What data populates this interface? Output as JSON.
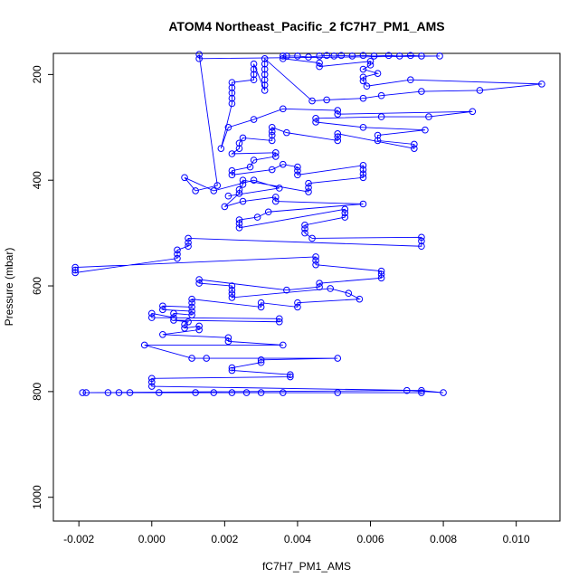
{
  "chart_data": {
    "type": "scatter",
    "title": "ATOM4 Northeast_Pacific_2 fC7H7_PM1_AMS",
    "xlabel": "fC7H7_PM1_AMS",
    "ylabel": "Pressure (mbar)",
    "xlim": [
      -0.0027,
      0.0112
    ],
    "ylim": [
      1045,
      160
    ],
    "y_reversed": true,
    "x_ticks": [
      -0.002,
      0.0,
      0.002,
      0.004,
      0.006,
      0.008,
      0.01
    ],
    "x_tick_labels": [
      "-0.002",
      "0.000",
      "0.002",
      "0.004",
      "0.006",
      "0.008",
      "0.010"
    ],
    "y_ticks": [
      200,
      400,
      600,
      800,
      1000
    ],
    "y_tick_labels": [
      "200",
      "400",
      "600",
      "800",
      "1000"
    ],
    "grid": false,
    "legend": "none",
    "color": "#0000ff",
    "series": [
      {
        "points": [
          [
            0.0074,
            802
          ],
          [
            0.0051,
            802
          ],
          [
            0.0036,
            802
          ],
          [
            0.003,
            802
          ],
          [
            0.0026,
            802
          ],
          [
            0.0022,
            802
          ],
          [
            0.0017,
            802
          ],
          [
            0.0012,
            802
          ],
          [
            0.0002,
            802
          ],
          [
            -0.0006,
            802
          ],
          [
            -0.0009,
            802
          ],
          [
            -0.0012,
            802
          ],
          [
            -0.0018,
            802
          ],
          [
            -0.0019,
            802
          ],
          [
            0.007,
            798
          ],
          [
            0.008,
            802
          ],
          [
            0.0074,
            798
          ],
          [
            0.0,
            790
          ],
          [
            0.0,
            782
          ],
          [
            0.0,
            775
          ],
          [
            0.0038,
            772
          ],
          [
            0.0038,
            768
          ],
          [
            0.0022,
            760
          ],
          [
            0.0022,
            755
          ],
          [
            0.003,
            745
          ],
          [
            0.003,
            740
          ],
          [
            0.0051,
            737
          ],
          [
            0.0015,
            737
          ],
          [
            0.0011,
            737
          ],
          [
            -0.0002,
            712
          ],
          [
            0.0036,
            712
          ],
          [
            0.0021,
            705
          ],
          [
            0.0021,
            698
          ],
          [
            0.0003,
            692
          ],
          [
            0.0013,
            683
          ],
          [
            0.0013,
            676
          ],
          [
            0.0009,
            680
          ],
          [
            0.0009,
            673
          ],
          [
            0.001,
            668
          ],
          [
            0.0006,
            665
          ],
          [
            0.0035,
            668
          ],
          [
            0.0035,
            662
          ],
          [
            0.0,
            660
          ],
          [
            0.0,
            652
          ],
          [
            0.0006,
            660
          ],
          [
            0.0006,
            652
          ],
          [
            0.0011,
            655
          ],
          [
            0.0011,
            648
          ],
          [
            0.0003,
            645
          ],
          [
            0.0003,
            638
          ],
          [
            0.0011,
            640
          ],
          [
            0.0011,
            632
          ],
          [
            0.0011,
            625
          ],
          [
            0.003,
            640
          ],
          [
            0.003,
            632
          ],
          [
            0.004,
            640
          ],
          [
            0.004,
            632
          ],
          [
            0.0057,
            625
          ],
          [
            0.0054,
            614
          ],
          [
            0.0049,
            605
          ],
          [
            0.0022,
            622
          ],
          [
            0.0022,
            615
          ],
          [
            0.0022,
            608
          ],
          [
            0.0022,
            600
          ],
          [
            0.0013,
            595
          ],
          [
            0.0013,
            588
          ],
          [
            0.0037,
            608
          ],
          [
            0.0046,
            602
          ],
          [
            0.0046,
            595
          ],
          [
            0.0063,
            585
          ],
          [
            0.0063,
            578
          ],
          [
            0.0063,
            572
          ],
          [
            0.0045,
            560
          ],
          [
            0.0045,
            552
          ],
          [
            0.0045,
            545
          ],
          [
            -0.0021,
            565
          ],
          [
            -0.0021,
            570
          ],
          [
            -0.0021,
            575
          ],
          [
            0.0007,
            548
          ],
          [
            0.0007,
            540
          ],
          [
            0.0007,
            532
          ],
          [
            0.001,
            525
          ],
          [
            0.001,
            518
          ],
          [
            0.001,
            510
          ],
          [
            0.0074,
            525
          ],
          [
            0.0074,
            515
          ],
          [
            0.0074,
            508
          ],
          [
            0.0044,
            510
          ],
          [
            0.0042,
            500
          ],
          [
            0.0042,
            492
          ],
          [
            0.0042,
            485
          ],
          [
            0.0053,
            470
          ],
          [
            0.0053,
            462
          ],
          [
            0.0053,
            455
          ],
          [
            0.0024,
            490
          ],
          [
            0.0024,
            482
          ],
          [
            0.0024,
            475
          ],
          [
            0.0029,
            470
          ],
          [
            0.0032,
            460
          ],
          [
            0.0058,
            445
          ],
          [
            0.0034,
            440
          ],
          [
            0.0034,
            432
          ],
          [
            0.0025,
            440
          ],
          [
            0.002,
            450
          ],
          [
            0.0024,
            425
          ],
          [
            0.0024,
            418
          ],
          [
            0.0025,
            408
          ],
          [
            0.0025,
            400
          ],
          [
            0.0043,
            422
          ],
          [
            0.0043,
            414
          ],
          [
            0.0043,
            406
          ],
          [
            0.0058,
            395
          ],
          [
            0.0058,
            388
          ],
          [
            0.0058,
            380
          ],
          [
            0.0058,
            372
          ],
          [
            0.004,
            390
          ],
          [
            0.004,
            382
          ],
          [
            0.004,
            375
          ],
          [
            0.0036,
            370
          ],
          [
            0.0033,
            380
          ],
          [
            0.0022,
            390
          ],
          [
            0.0022,
            382
          ],
          [
            0.0027,
            375
          ],
          [
            0.0028,
            362
          ],
          [
            0.0034,
            355
          ],
          [
            0.0034,
            348
          ],
          [
            0.0022,
            350
          ],
          [
            0.0024,
            340
          ],
          [
            0.0024,
            330
          ],
          [
            0.0025,
            320
          ],
          [
            0.0033,
            325
          ],
          [
            0.0033,
            315
          ],
          [
            0.0033,
            308
          ],
          [
            0.0033,
            300
          ],
          [
            0.0037,
            310
          ],
          [
            0.0051,
            325
          ],
          [
            0.0051,
            318
          ],
          [
            0.0051,
            312
          ],
          [
            0.0072,
            340
          ],
          [
            0.0072,
            332
          ],
          [
            0.0062,
            325
          ],
          [
            0.0062,
            315
          ],
          [
            0.0075,
            305
          ],
          [
            0.0058,
            300
          ],
          [
            0.0045,
            290
          ],
          [
            0.0045,
            283
          ],
          [
            0.0063,
            280
          ],
          [
            0.0076,
            280
          ],
          [
            0.0088,
            270
          ],
          [
            0.0051,
            275
          ],
          [
            0.0051,
            268
          ],
          [
            0.0036,
            265
          ],
          [
            0.0028,
            285
          ],
          [
            0.0021,
            300
          ],
          [
            0.0019,
            340
          ],
          [
            0.0022,
            255
          ],
          [
            0.0022,
            245
          ],
          [
            0.0022,
            235
          ],
          [
            0.0022,
            225
          ],
          [
            0.0022,
            215
          ],
          [
            0.0028,
            210
          ],
          [
            0.0028,
            200
          ],
          [
            0.0028,
            190
          ],
          [
            0.0028,
            180
          ],
          [
            0.0031,
            230
          ],
          [
            0.0031,
            220
          ],
          [
            0.0031,
            210
          ],
          [
            0.0031,
            200
          ],
          [
            0.0031,
            190
          ],
          [
            0.0031,
            180
          ],
          [
            0.0031,
            170
          ],
          [
            0.0044,
            250
          ],
          [
            0.0048,
            248
          ],
          [
            0.0058,
            245
          ],
          [
            0.0063,
            240
          ],
          [
            0.0074,
            232
          ],
          [
            0.009,
            230
          ],
          [
            0.0107,
            218
          ],
          [
            0.0071,
            210
          ],
          [
            0.0059,
            222
          ],
          [
            0.0058,
            212
          ],
          [
            0.0058,
            205
          ],
          [
            0.0062,
            198
          ],
          [
            0.0058,
            190
          ],
          [
            0.006,
            182
          ],
          [
            0.006,
            175
          ],
          [
            0.0046,
            185
          ],
          [
            0.0046,
            178
          ],
          [
            0.0036,
            170
          ],
          [
            0.0036,
            165
          ],
          [
            0.0037,
            165
          ],
          [
            0.004,
            165
          ],
          [
            0.0043,
            167
          ],
          [
            0.0046,
            165
          ],
          [
            0.0048,
            164
          ],
          [
            0.005,
            165
          ],
          [
            0.0052,
            164
          ],
          [
            0.0055,
            165
          ],
          [
            0.0058,
            164
          ],
          [
            0.0061,
            165
          ],
          [
            0.0065,
            164
          ],
          [
            0.0068,
            165
          ],
          [
            0.0071,
            164
          ],
          [
            0.0074,
            165
          ],
          [
            0.0079,
            165
          ],
          [
            0.0013,
            170
          ],
          [
            0.0013,
            162
          ],
          [
            0.0018,
            410
          ],
          [
            0.0012,
            420
          ],
          [
            0.0009,
            395
          ],
          [
            0.0017,
            420
          ],
          [
            0.0028,
            400
          ],
          [
            0.0035,
            415
          ],
          [
            0.0021,
            430
          ]
        ]
      }
    ]
  }
}
